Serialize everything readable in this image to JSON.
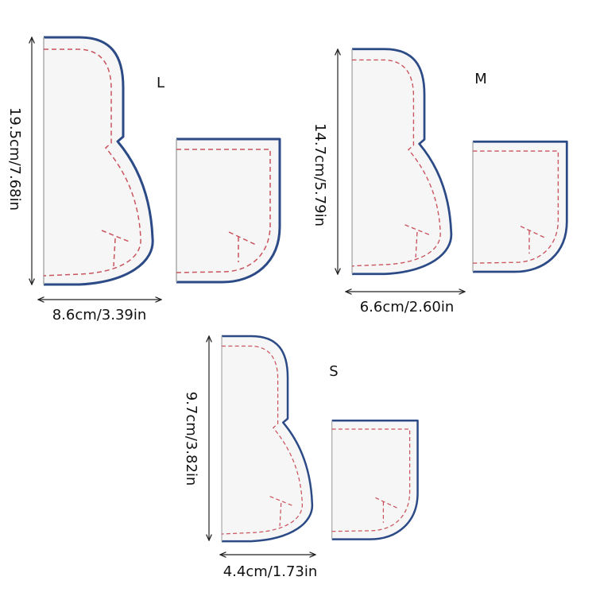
{
  "patterns": [
    {
      "size": "L",
      "height": "19.5cm/7.68in",
      "width": "8.6cm/3.39in"
    },
    {
      "size": "M",
      "height": "14.7cm/5.79in",
      "width": "6.6cm/2.60in"
    },
    {
      "size": "S",
      "height": "9.7cm/3.82in",
      "width": "4.4cm/1.73in"
    }
  ]
}
